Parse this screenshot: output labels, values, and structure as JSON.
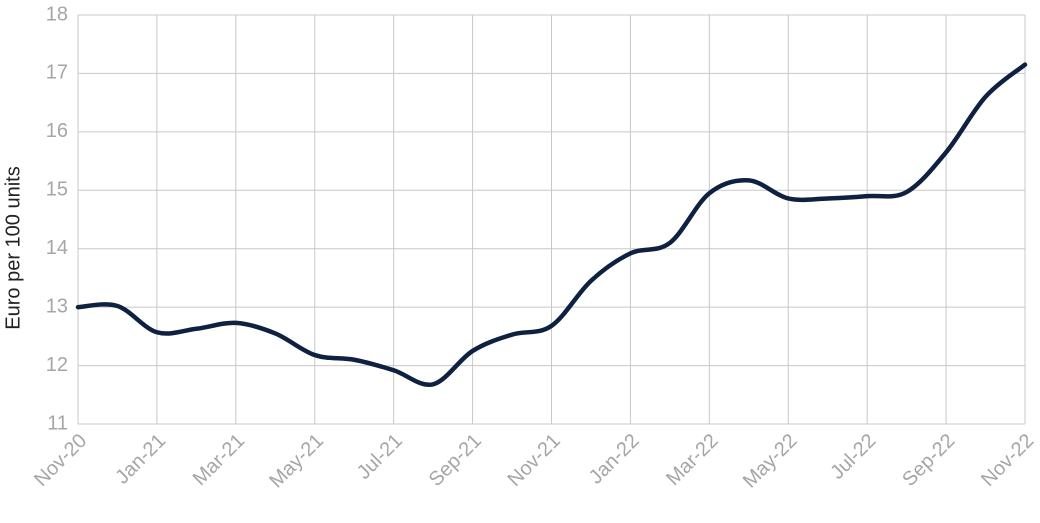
{
  "chart_data": {
    "type": "line",
    "y_label": "Euro per 100 units",
    "categories": [
      "Nov-20",
      null,
      "Jan-21",
      null,
      "Mar-21",
      null,
      "May-21",
      null,
      "Jul-21",
      null,
      "Sep-21",
      null,
      "Nov-21",
      null,
      "Jan-22",
      null,
      "Mar-22",
      null,
      "May-22",
      null,
      "Jul-22",
      null,
      "Sep-22",
      null,
      "Nov-22"
    ],
    "series": [
      {
        "color": "#0f2140",
        "values": [
          13.0,
          13.02,
          12.57,
          12.63,
          12.73,
          12.55,
          12.18,
          12.1,
          11.92,
          11.68,
          12.25,
          12.53,
          12.68,
          13.45,
          13.92,
          14.1,
          14.95,
          15.17,
          14.86,
          14.86,
          14.9,
          14.97,
          15.65,
          16.6,
          17.15
        ]
      }
    ],
    "ylim": [
      11,
      18
    ],
    "yticks": [
      11,
      12,
      13,
      14,
      15,
      16,
      17,
      18
    ],
    "grid": true
  }
}
